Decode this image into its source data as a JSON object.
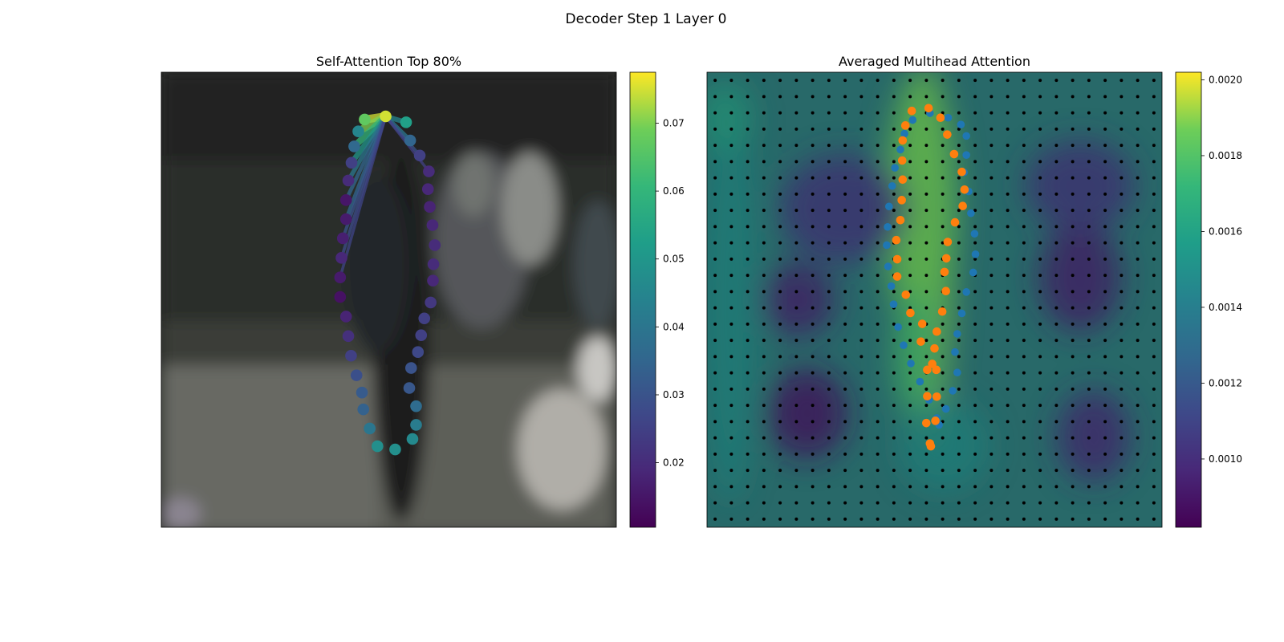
{
  "figure": {
    "title": "Decoder Step 1 Layer 0"
  },
  "chart_data": [
    {
      "type": "scatter",
      "title": "Self-Attention Top 80%",
      "colormap": "viridis",
      "colorbar": {
        "range": [
          0.0105,
          0.0775
        ],
        "ticks": [
          0.02,
          0.03,
          0.04,
          0.05,
          0.06,
          0.07
        ],
        "tick_labels": [
          "0.02",
          "0.03",
          "0.04",
          "0.05",
          "0.06",
          "0.07"
        ]
      },
      "background": "blurred photo: pedestrian on street",
      "query_point_index": 0,
      "points": [
        {
          "x": 0.493,
          "y": 0.097,
          "v": 0.075
        },
        {
          "x": 0.447,
          "y": 0.104,
          "v": 0.067
        },
        {
          "x": 0.538,
          "y": 0.11,
          "v": 0.053
        },
        {
          "x": 0.433,
          "y": 0.13,
          "v": 0.045
        },
        {
          "x": 0.547,
          "y": 0.15,
          "v": 0.035
        },
        {
          "x": 0.424,
          "y": 0.163,
          "v": 0.036
        },
        {
          "x": 0.568,
          "y": 0.183,
          "v": 0.025
        },
        {
          "x": 0.418,
          "y": 0.199,
          "v": 0.025
        },
        {
          "x": 0.588,
          "y": 0.218,
          "v": 0.02
        },
        {
          "x": 0.411,
          "y": 0.238,
          "v": 0.02
        },
        {
          "x": 0.586,
          "y": 0.257,
          "v": 0.019
        },
        {
          "x": 0.406,
          "y": 0.281,
          "v": 0.015
        },
        {
          "x": 0.59,
          "y": 0.296,
          "v": 0.018
        },
        {
          "x": 0.406,
          "y": 0.323,
          "v": 0.016
        },
        {
          "x": 0.596,
          "y": 0.336,
          "v": 0.019
        },
        {
          "x": 0.399,
          "y": 0.365,
          "v": 0.017
        },
        {
          "x": 0.601,
          "y": 0.38,
          "v": 0.02
        },
        {
          "x": 0.396,
          "y": 0.408,
          "v": 0.019
        },
        {
          "x": 0.598,
          "y": 0.422,
          "v": 0.02
        },
        {
          "x": 0.393,
          "y": 0.451,
          "v": 0.016
        },
        {
          "x": 0.597,
          "y": 0.458,
          "v": 0.019
        },
        {
          "x": 0.393,
          "y": 0.494,
          "v": 0.014
        },
        {
          "x": 0.592,
          "y": 0.506,
          "v": 0.023
        },
        {
          "x": 0.406,
          "y": 0.537,
          "v": 0.018
        },
        {
          "x": 0.578,
          "y": 0.541,
          "v": 0.025
        },
        {
          "x": 0.411,
          "y": 0.58,
          "v": 0.021
        },
        {
          "x": 0.571,
          "y": 0.578,
          "v": 0.025
        },
        {
          "x": 0.417,
          "y": 0.623,
          "v": 0.025
        },
        {
          "x": 0.564,
          "y": 0.615,
          "v": 0.027
        },
        {
          "x": 0.429,
          "y": 0.666,
          "v": 0.029
        },
        {
          "x": 0.549,
          "y": 0.65,
          "v": 0.03
        },
        {
          "x": 0.441,
          "y": 0.704,
          "v": 0.032
        },
        {
          "x": 0.545,
          "y": 0.694,
          "v": 0.031
        },
        {
          "x": 0.444,
          "y": 0.741,
          "v": 0.034
        },
        {
          "x": 0.56,
          "y": 0.734,
          "v": 0.037
        },
        {
          "x": 0.458,
          "y": 0.783,
          "v": 0.04
        },
        {
          "x": 0.56,
          "y": 0.775,
          "v": 0.042
        },
        {
          "x": 0.475,
          "y": 0.822,
          "v": 0.048
        },
        {
          "x": 0.552,
          "y": 0.806,
          "v": 0.046
        },
        {
          "x": 0.514,
          "y": 0.829,
          "v": 0.048
        }
      ],
      "attention_links": [
        {
          "to": 1,
          "w": 0.075
        },
        {
          "to": 3,
          "w": 0.07
        },
        {
          "to": 5,
          "w": 0.06
        },
        {
          "to": 2,
          "w": 0.045
        },
        {
          "to": 4,
          "w": 0.04
        },
        {
          "to": 7,
          "w": 0.05
        },
        {
          "to": 9,
          "w": 0.04
        },
        {
          "to": 6,
          "w": 0.03
        },
        {
          "to": 11,
          "w": 0.035
        },
        {
          "to": 13,
          "w": 0.035
        },
        {
          "to": 15,
          "w": 0.03
        },
        {
          "to": 17,
          "w": 0.028
        },
        {
          "to": 19,
          "w": 0.026
        },
        {
          "to": 8,
          "w": 0.025
        }
      ]
    },
    {
      "type": "heatmap",
      "title": "Averaged Multihead Attention",
      "colormap": "viridis",
      "colorbar": {
        "range": [
          0.00082,
          0.00202
        ],
        "ticks": [
          0.001,
          0.0012,
          0.0014,
          0.0016,
          0.0018,
          0.002
        ],
        "tick_labels": [
          "0.0010",
          "0.0012",
          "0.0014",
          "0.0016",
          "0.0018",
          "0.0020"
        ]
      },
      "grid_size": [
        28,
        28
      ],
      "heat_regions": [
        {
          "cx": 0.48,
          "cy": 0.4,
          "rx": 0.06,
          "ry": 0.42,
          "v": 0.0019
        },
        {
          "cx": 0.47,
          "cy": 0.3,
          "rx": 0.08,
          "ry": 0.3,
          "v": 0.00185
        },
        {
          "cx": 0.46,
          "cy": 0.62,
          "rx": 0.05,
          "ry": 0.14,
          "v": 0.00175
        },
        {
          "cx": 0.52,
          "cy": 0.82,
          "rx": 0.1,
          "ry": 0.1,
          "v": 0.0015
        },
        {
          "cx": 0.05,
          "cy": 0.5,
          "rx": 0.06,
          "ry": 0.45,
          "v": 0.0015
        },
        {
          "cx": 0.04,
          "cy": 0.1,
          "rx": 0.06,
          "ry": 0.08,
          "v": 0.0016
        },
        {
          "cx": 0.2,
          "cy": 0.5,
          "rx": 0.08,
          "ry": 0.08,
          "v": 0.00095
        },
        {
          "cx": 0.22,
          "cy": 0.75,
          "rx": 0.09,
          "ry": 0.1,
          "v": 0.0009
        },
        {
          "cx": 0.82,
          "cy": 0.45,
          "rx": 0.09,
          "ry": 0.12,
          "v": 0.00095
        },
        {
          "cx": 0.85,
          "cy": 0.8,
          "rx": 0.08,
          "ry": 0.1,
          "v": 0.001
        },
        {
          "cx": 0.82,
          "cy": 0.25,
          "rx": 0.12,
          "ry": 0.1,
          "v": 0.00105
        },
        {
          "cx": 0.3,
          "cy": 0.3,
          "rx": 0.14,
          "ry": 0.12,
          "v": 0.00105
        }
      ],
      "reference_points_color": "#1f77b4",
      "reference_points": [
        {
          "x": 0.452,
          "y": 0.105
        },
        {
          "x": 0.49,
          "y": 0.09
        },
        {
          "x": 0.53,
          "y": 0.1
        },
        {
          "x": 0.558,
          "y": 0.115
        },
        {
          "x": 0.434,
          "y": 0.135
        },
        {
          "x": 0.57,
          "y": 0.14
        },
        {
          "x": 0.425,
          "y": 0.17
        },
        {
          "x": 0.57,
          "y": 0.182
        },
        {
          "x": 0.413,
          "y": 0.21
        },
        {
          "x": 0.565,
          "y": 0.22
        },
        {
          "x": 0.407,
          "y": 0.25
        },
        {
          "x": 0.575,
          "y": 0.262
        },
        {
          "x": 0.4,
          "y": 0.295
        },
        {
          "x": 0.58,
          "y": 0.31
        },
        {
          "x": 0.397,
          "y": 0.34
        },
        {
          "x": 0.588,
          "y": 0.355
        },
        {
          "x": 0.395,
          "y": 0.38
        },
        {
          "x": 0.59,
          "y": 0.4
        },
        {
          "x": 0.398,
          "y": 0.427
        },
        {
          "x": 0.585,
          "y": 0.44
        },
        {
          "x": 0.405,
          "y": 0.47
        },
        {
          "x": 0.57,
          "y": 0.483
        },
        {
          "x": 0.41,
          "y": 0.51
        },
        {
          "x": 0.56,
          "y": 0.53
        },
        {
          "x": 0.42,
          "y": 0.56
        },
        {
          "x": 0.55,
          "y": 0.575
        },
        {
          "x": 0.432,
          "y": 0.6
        },
        {
          "x": 0.545,
          "y": 0.615
        },
        {
          "x": 0.448,
          "y": 0.64
        },
        {
          "x": 0.55,
          "y": 0.66
        },
        {
          "x": 0.468,
          "y": 0.68
        },
        {
          "x": 0.54,
          "y": 0.7
        },
        {
          "x": 0.488,
          "y": 0.72
        },
        {
          "x": 0.525,
          "y": 0.74
        },
        {
          "x": 0.505,
          "y": 0.76
        },
        {
          "x": 0.51,
          "y": 0.775
        }
      ],
      "predicted_points_color": "#ff7f0e",
      "predicted_points": [
        {
          "x": 0.45,
          "y": 0.085
        },
        {
          "x": 0.487,
          "y": 0.079
        },
        {
          "x": 0.513,
          "y": 0.1
        },
        {
          "x": 0.436,
          "y": 0.117
        },
        {
          "x": 0.528,
          "y": 0.137
        },
        {
          "x": 0.43,
          "y": 0.15
        },
        {
          "x": 0.543,
          "y": 0.18
        },
        {
          "x": 0.429,
          "y": 0.194
        },
        {
          "x": 0.56,
          "y": 0.219
        },
        {
          "x": 0.43,
          "y": 0.236
        },
        {
          "x": 0.566,
          "y": 0.258
        },
        {
          "x": 0.428,
          "y": 0.281
        },
        {
          "x": 0.562,
          "y": 0.294
        },
        {
          "x": 0.425,
          "y": 0.325
        },
        {
          "x": 0.545,
          "y": 0.33
        },
        {
          "x": 0.416,
          "y": 0.369
        },
        {
          "x": 0.529,
          "y": 0.373
        },
        {
          "x": 0.418,
          "y": 0.411
        },
        {
          "x": 0.526,
          "y": 0.409
        },
        {
          "x": 0.418,
          "y": 0.449
        },
        {
          "x": 0.522,
          "y": 0.439
        },
        {
          "x": 0.437,
          "y": 0.489
        },
        {
          "x": 0.525,
          "y": 0.481
        },
        {
          "x": 0.447,
          "y": 0.529
        },
        {
          "x": 0.517,
          "y": 0.526
        },
        {
          "x": 0.473,
          "y": 0.553
        },
        {
          "x": 0.505,
          "y": 0.57
        },
        {
          "x": 0.47,
          "y": 0.592
        },
        {
          "x": 0.5,
          "y": 0.607
        },
        {
          "x": 0.495,
          "y": 0.641
        },
        {
          "x": 0.484,
          "y": 0.654
        },
        {
          "x": 0.504,
          "y": 0.654
        },
        {
          "x": 0.484,
          "y": 0.712
        },
        {
          "x": 0.505,
          "y": 0.713
        },
        {
          "x": 0.482,
          "y": 0.771
        },
        {
          "x": 0.502,
          "y": 0.766
        },
        {
          "x": 0.49,
          "y": 0.816
        },
        {
          "x": 0.492,
          "y": 0.822
        }
      ]
    }
  ]
}
